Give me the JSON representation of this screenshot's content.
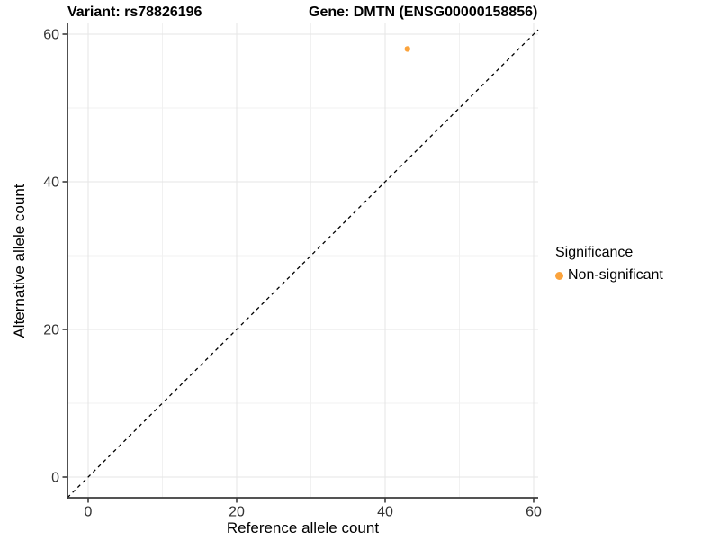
{
  "titles": {
    "left": "Variant: rs78826196",
    "right": "Gene: DMTN (ENSG00000158856)"
  },
  "axes": {
    "x_label": "Reference allele count",
    "y_label": "Alternative allele count"
  },
  "legend": {
    "title": "Significance",
    "items": [
      {
        "label": "Non-significant",
        "color": "#FBA33C"
      }
    ]
  },
  "chart_data": {
    "type": "scatter",
    "title_left": "Variant: rs78826196",
    "title_right": "Gene: DMTN (ENSG00000158856)",
    "xlabel": "Reference allele count",
    "ylabel": "Alternative allele count",
    "xlim": [
      -3,
      63
    ],
    "ylim": [
      -3,
      63
    ],
    "xticks": [
      0,
      20,
      40,
      60
    ],
    "yticks": [
      0,
      20,
      40,
      60
    ],
    "xticks_minor": [
      10,
      30,
      50
    ],
    "yticks_minor": [
      10,
      30,
      50
    ],
    "grid": true,
    "legend_position": "right",
    "series": [
      {
        "name": "Non-significant",
        "color": "#FBA33C",
        "points": [
          {
            "x": 43,
            "y": 58
          }
        ]
      }
    ],
    "reference_line": {
      "type": "abline",
      "slope": 1,
      "intercept": 0,
      "style": "dashed",
      "color": "#000000"
    },
    "style_colors": {
      "axis_line": "#3C3C3C",
      "grid_major": "#E5E5E5",
      "grid_minor": "#F1F1F1",
      "tick_text": "#333333"
    }
  }
}
